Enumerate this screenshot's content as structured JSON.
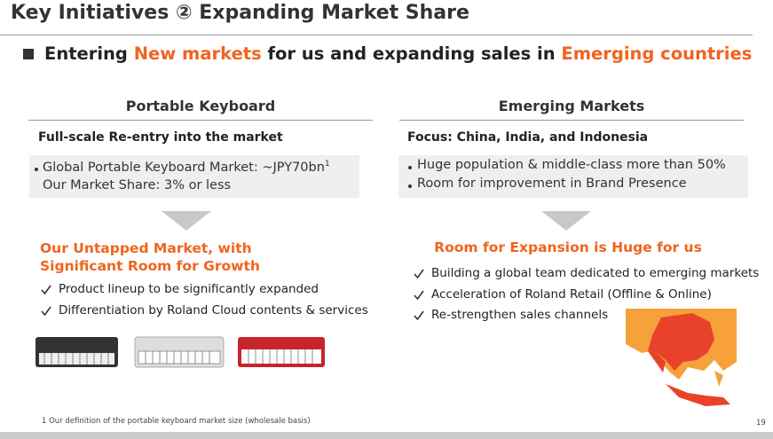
{
  "header": {
    "title": "Key Initiatives ② Expanding Market Share"
  },
  "subtitle": {
    "parts": [
      "Entering ",
      "New markets",
      " for us and expanding sales in ",
      "Emerging countries"
    ]
  },
  "left": {
    "heading": "Portable Keyboard",
    "focus": "Full-scale Re-entry into the market",
    "box": {
      "line1": "Global Portable Keyboard Market: ~JPY70bn",
      "footnote_ref": "1",
      "line2": "Our Market Share: 3% or less"
    },
    "highlight": "Our Untapped Market, with Significant Room for Growth",
    "checks": [
      "Product lineup to be significantly expanded",
      "Differentiation by Roland Cloud contents & services"
    ]
  },
  "right": {
    "heading": "Emerging Markets",
    "focus": "Focus: China, India, and Indonesia",
    "box": [
      "Huge population & middle-class more than 50%",
      "Room for improvement in Brand Presence"
    ],
    "highlight": "Room for Expansion is Huge for us",
    "checks": [
      "Building a global team dedicated to emerging markets",
      "Acceleration of Roland Retail (Offline & Online)",
      "Re-strengthen sales channels"
    ]
  },
  "footer": {
    "footnote": "1 Our definition of the portable keyboard market size (wholesale basis)",
    "page": "19"
  }
}
